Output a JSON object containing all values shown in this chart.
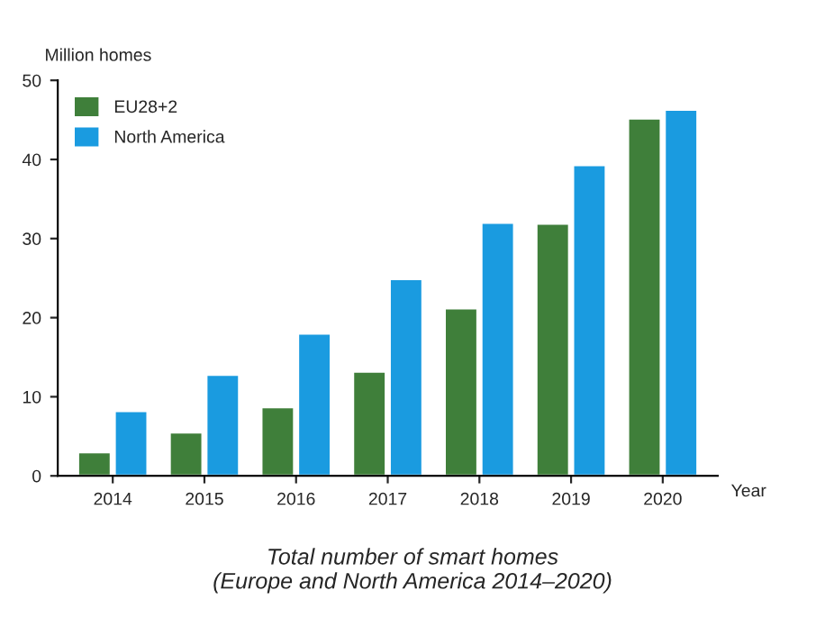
{
  "chart_data": {
    "type": "bar",
    "title": "Total number of smart homes\n(Europe and North America 2014–2020)",
    "ylabel": "Million homes",
    "xlabel": "Year",
    "categories": [
      "2014",
      "2015",
      "2016",
      "2017",
      "2018",
      "2019",
      "2020"
    ],
    "series": [
      {
        "name": "EU28+2",
        "color": "#3f7f3a",
        "values": [
          3,
          5.5,
          8.7,
          13.2,
          21.2,
          31.9,
          45.2
        ]
      },
      {
        "name": "North America",
        "color": "#1a9be0",
        "values": [
          8.2,
          12.8,
          18,
          24.9,
          32,
          39.3,
          46.3
        ]
      }
    ],
    "ylim": [
      0,
      50
    ],
    "yticks": [
      0,
      10,
      20,
      30,
      40,
      50
    ],
    "grid": false,
    "legend": "top left"
  }
}
